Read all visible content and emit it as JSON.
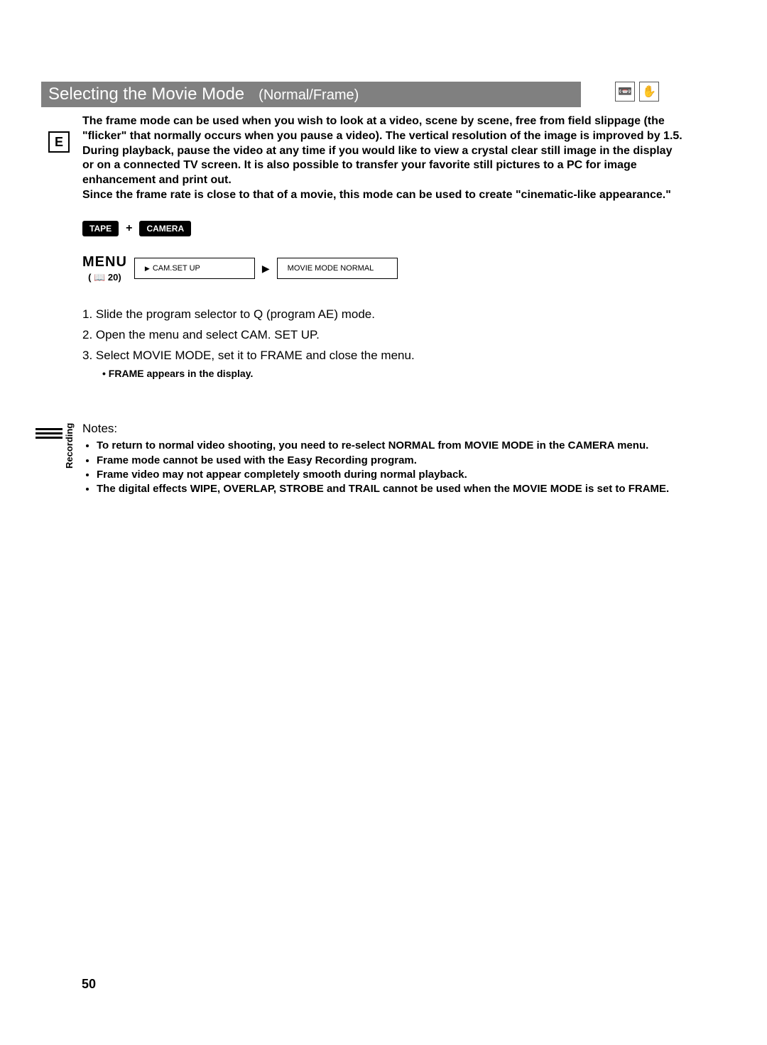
{
  "title": {
    "main": "Selecting the Movie Mode",
    "sub": "(Normal/Frame)"
  },
  "badge": "E",
  "intro": "The frame mode can be used when you wish to look at a video, scene by scene, free from field slippage (the \"flicker\" that normally occurs when you pause a video). The vertical resolution of the image is improved by 1.5. During playback, pause the video at any time if you would like to view a crystal clear still image in the display or on a connected TV screen. It is also possible to transfer your favorite still pictures to a PC for image enhancement and print out.\nSince the frame rate is close to that of a movie, this mode can be used to create \"cinematic-like appearance.\"",
  "pills": {
    "left": "TAPE",
    "plus": "+",
    "right": "CAMERA"
  },
  "menu": {
    "label": "MENU",
    "ref": "( 📖 20)",
    "box1": "CAM.SET UP",
    "box2": "MOVIE MODE  NORMAL"
  },
  "steps": {
    "s1": "1. Slide the program selector to Q    (program AE) mode.",
    "s2": "2. Open the menu and select CAM. SET UP.",
    "s3": "3. Select MOVIE MODE, set it to FRAME and close the menu.",
    "s3note": "• FRAME appears in the display."
  },
  "notes": {
    "heading": "Notes:",
    "items": [
      "To return to normal video shooting, you need to re-select NORMAL from MOVIE MODE in the CAMERA menu.",
      "Frame mode cannot be used with the Easy Recording program.",
      "Frame video may not appear completely smooth during normal playback.",
      "The digital effects WIPE, OVERLAP, STROBE and TRAIL cannot be used when the MOVIE MODE is set to FRAME."
    ]
  },
  "side_label": "Recording",
  "page_number": "50",
  "icons": {
    "cam": "📼",
    "hand": "✋"
  }
}
